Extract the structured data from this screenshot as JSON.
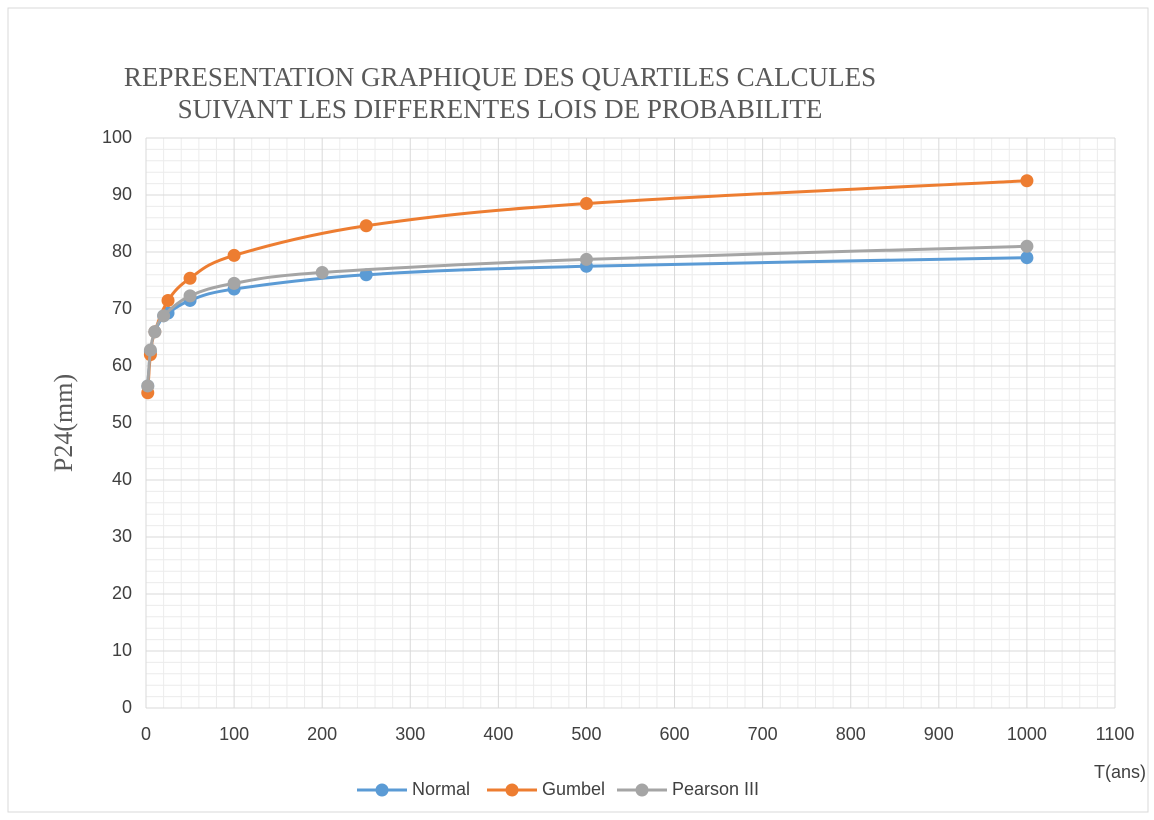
{
  "chart_data": {
    "type": "line",
    "title": [
      "REPRESENTATION GRAPHIQUE DES QUARTILES CALCULES",
      "SUIVANT LES DIFFERENTES LOIS DE PROBABILITE"
    ],
    "y_label": "P24(mm)",
    "x_label": "T(ans)",
    "xlim": [
      0,
      1100
    ],
    "xticks": [
      0,
      100,
      200,
      300,
      400,
      500,
      600,
      700,
      800,
      900,
      1000,
      1100
    ],
    "ylim": [
      0,
      100
    ],
    "yticks": [
      0,
      10,
      20,
      30,
      40,
      50,
      60,
      70,
      80,
      90,
      100
    ],
    "grid": true,
    "minor_grid": true,
    "legend": "bottom",
    "smooth": true,
    "series": [
      {
        "name": "Normal",
        "color": "#5b9bd5",
        "x": [
          2,
          5,
          10,
          20,
          25,
          50,
          100,
          250,
          500,
          1000
        ],
        "values": [
          56.5,
          62.5,
          66,
          68.8,
          69.3,
          71.5,
          73.5,
          76,
          77.5,
          79
        ]
      },
      {
        "name": "Gumbel",
        "color": "#ed7d31",
        "x": [
          2,
          5,
          10,
          25,
          50,
          100,
          250,
          500,
          1000
        ],
        "values": [
          55.3,
          62,
          66,
          71.5,
          75.4,
          79.4,
          84.6,
          88.5,
          92.5
        ]
      },
      {
        "name": "Pearson III",
        "color": "#a5a5a5",
        "x": [
          2,
          5,
          10,
          20,
          50,
          100,
          200,
          500,
          1000
        ],
        "values": [
          56.5,
          62.8,
          66,
          68.8,
          72.3,
          74.5,
          76.4,
          78.7,
          81
        ]
      }
    ]
  }
}
